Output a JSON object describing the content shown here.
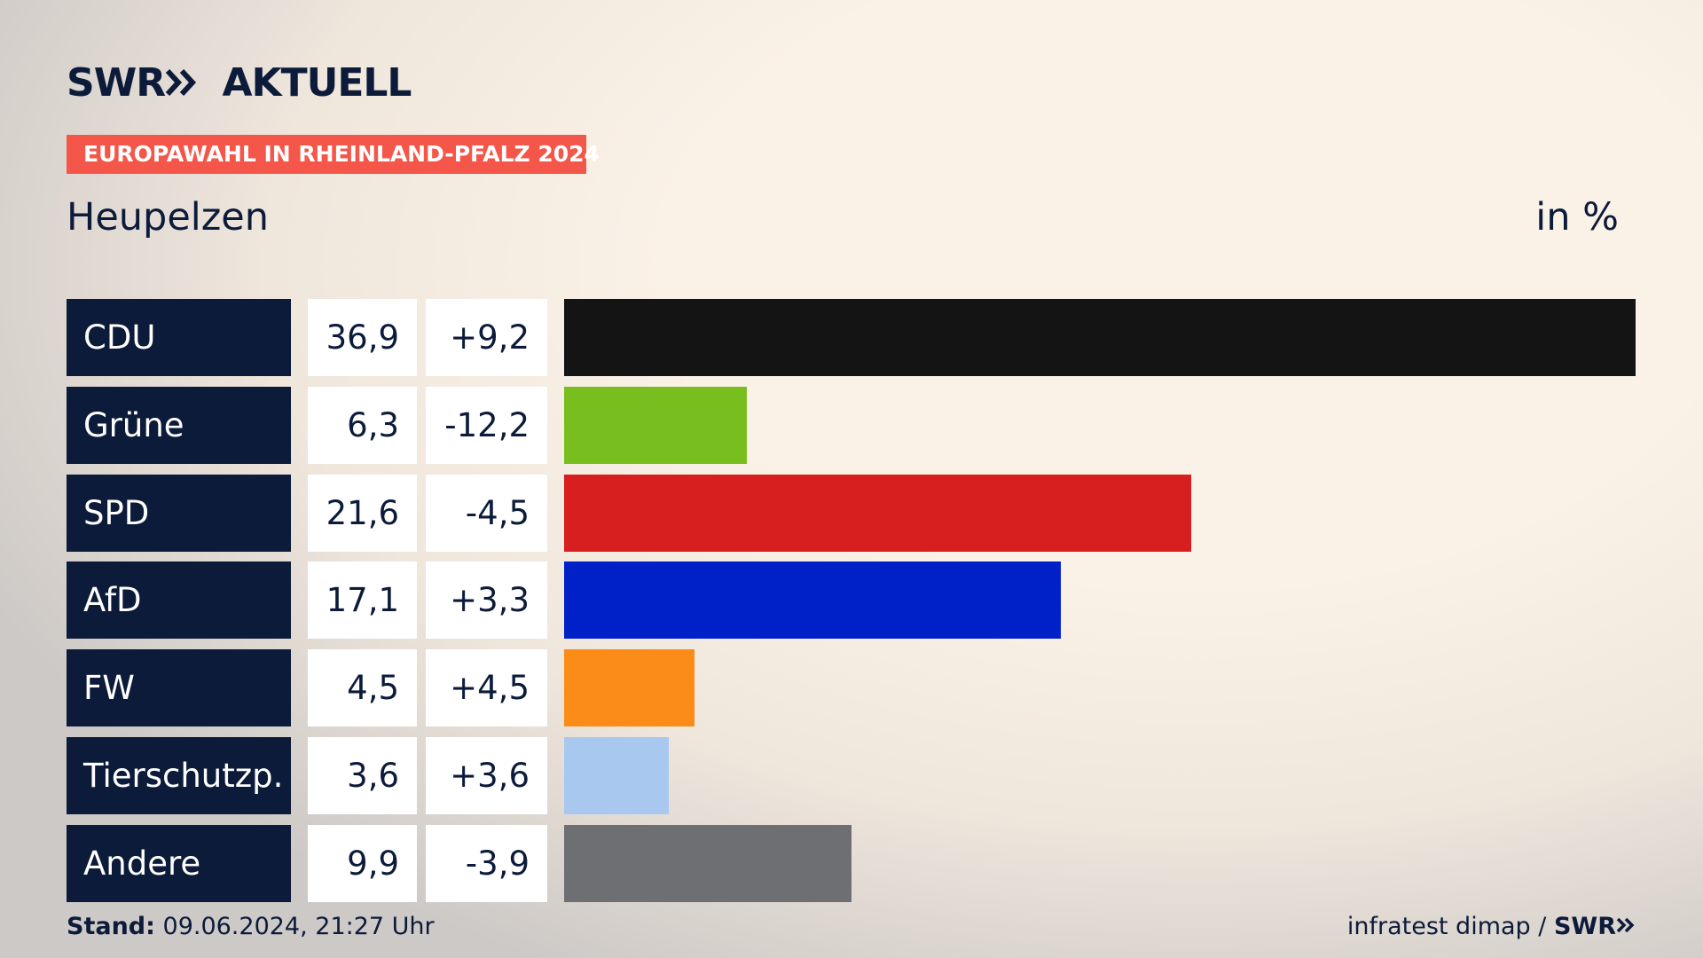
{
  "header": {
    "logo": "SWR",
    "section": "AKTUELL",
    "tag": "EUROPAWAHL IN RHEINLAND-PFALZ 2024"
  },
  "chart_data": {
    "type": "bar",
    "orientation": "horizontal",
    "title": "Heupelzen",
    "unit_label": "in %",
    "categories": [
      "CDU",
      "Grüne",
      "SPD",
      "AfD",
      "FW",
      "Tierschutzp.",
      "Andere"
    ],
    "values": [
      36.9,
      6.3,
      21.6,
      17.1,
      4.5,
      3.6,
      9.9
    ],
    "value_labels": [
      "36,9",
      "6,3",
      "21,6",
      "17,1",
      "4,5",
      "3,6",
      "9,9"
    ],
    "changes": [
      9.2,
      -12.2,
      -4.5,
      3.3,
      4.5,
      3.6,
      -3.9
    ],
    "change_labels": [
      "+9,2",
      "-12,2",
      "-4,5",
      "+3,3",
      "+4,5",
      "+3,6",
      "-3,9"
    ],
    "colors": [
      "#141414",
      "#78be1e",
      "#d71f1f",
      "#0021c8",
      "#fb8c17",
      "#a9c8f0",
      "#6e6f72"
    ]
  },
  "footer": {
    "label": "Stand:",
    "timestamp": "09.06.2024, 21:27 Uhr",
    "source": "infratest dimap /",
    "source_logo": "SWR"
  }
}
